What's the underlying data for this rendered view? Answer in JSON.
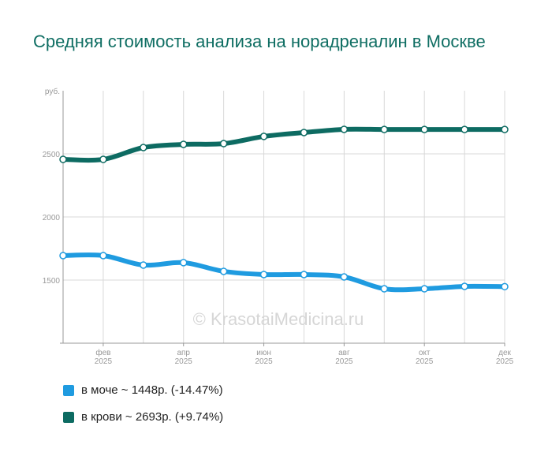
{
  "chart_data": {
    "type": "line",
    "title": "Средняя стоимость анализа на норадреналин в Москве",
    "ylabel": "руб.",
    "ylim": [
      1000,
      3000
    ],
    "yticks": [
      1500,
      2000,
      2500
    ],
    "xticks": [
      {
        "m": "фев",
        "y": "2025",
        "i": 1
      },
      {
        "m": "апр",
        "y": "2025",
        "i": 3
      },
      {
        "m": "июн",
        "y": "2025",
        "i": 5
      },
      {
        "m": "авг",
        "y": "2025",
        "i": 7
      },
      {
        "m": "окт",
        "y": "2025",
        "i": 9
      },
      {
        "m": "дек",
        "y": "2025",
        "i": 11
      }
    ],
    "watermark": "© KrasotaiMedicina.ru",
    "series": [
      {
        "name": "в моче ~ 1448р. (-14.47%)",
        "color": "#1f9be0",
        "values": [
          1694,
          1694,
          1619,
          1638,
          1569,
          1544,
          1544,
          1525,
          1431,
          1431,
          1450,
          1448
        ]
      },
      {
        "name": "в крови ~ 2693р. (+9.74%)",
        "color": "#0d6b62",
        "values": [
          2456,
          2456,
          2550,
          2575,
          2581,
          2638,
          2669,
          2694,
          2693,
          2693,
          2693,
          2693
        ]
      }
    ],
    "grid": true,
    "legend": "bottom-left"
  }
}
